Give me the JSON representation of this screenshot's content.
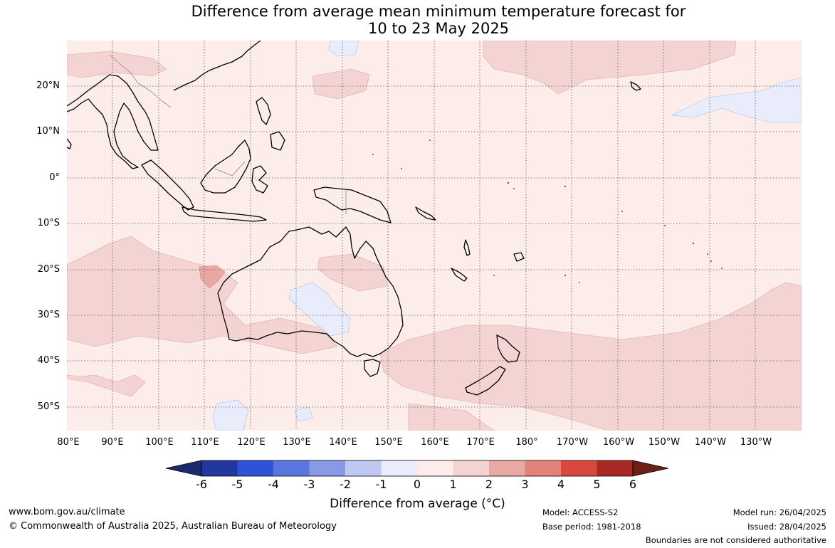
{
  "title_line1": "Difference from average mean minimum temperature forecast for",
  "title_line2": "10 to 23 May 2025",
  "lat_labels": [
    "20°N",
    "10°N",
    "0°",
    "10°S",
    "20°S",
    "30°S",
    "40°S",
    "50°S"
  ],
  "lon_labels": [
    "80°E",
    "90°E",
    "100°E",
    "110°E",
    "120°E",
    "130°E",
    "140°E",
    "150°E",
    "160°E",
    "170°E",
    "180°",
    "170°W",
    "160°W",
    "150°W",
    "140°W",
    "130°W"
  ],
  "colorbar": {
    "ticks": [
      "-6",
      "-5",
      "-4",
      "-3",
      "-2",
      "-1",
      "0",
      "1",
      "2",
      "3",
      "4",
      "5",
      "6"
    ],
    "colors": [
      "#23389e",
      "#3052d9",
      "#5c76e0",
      "#8899e6",
      "#bfc8f2",
      "#e8ecfb",
      "#fcecea",
      "#f4d4d2",
      "#eaa8a2",
      "#e38278",
      "#d9483e",
      "#a82823"
    ],
    "below_color": "#1b2a6e",
    "above_color": "#6e1f1a",
    "label": "Difference from average (°C)"
  },
  "footer": {
    "website": "www.bom.gov.au/climate",
    "copyright": "© Commonwealth of Australia 2025, Australian Bureau of Meteorology",
    "model": "Model: ACCESS-S2",
    "base_period": "Base period: 1981-2018",
    "model_run": "Model run: 26/04/2025",
    "issued": "Issued: 28/04/2025",
    "disclaimer": "Boundaries are not considered authoritative"
  }
}
